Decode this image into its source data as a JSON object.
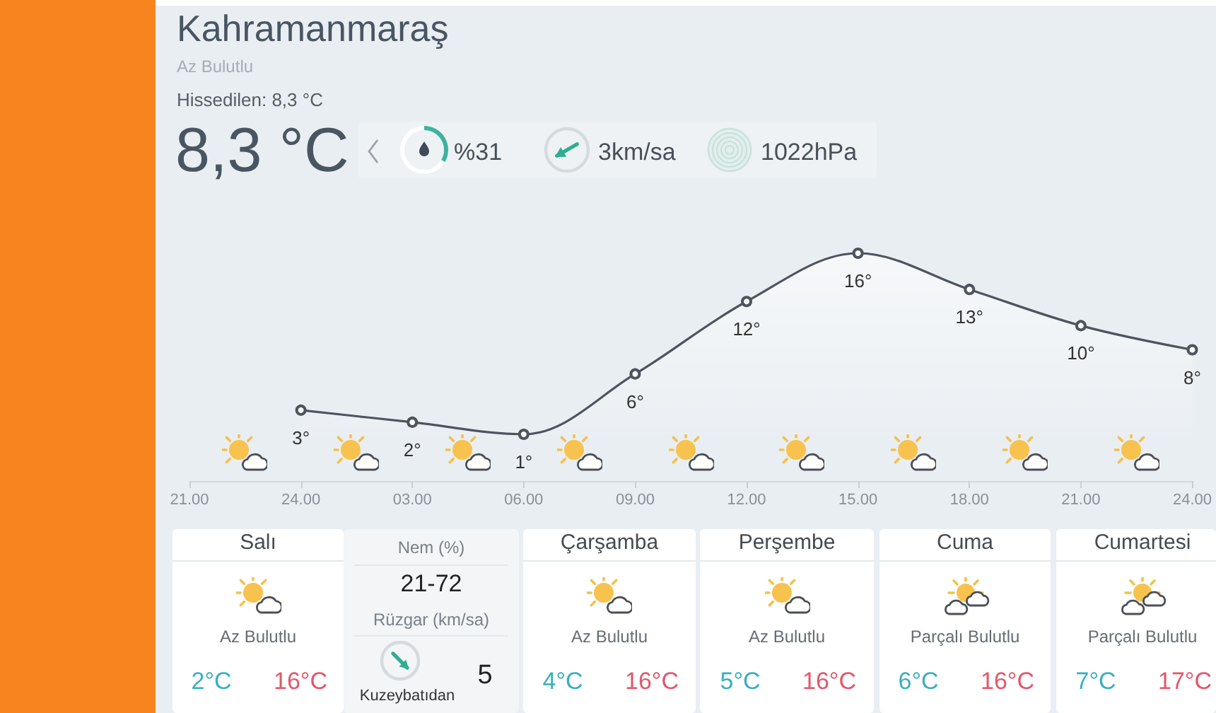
{
  "chart_data": {
    "type": "area",
    "title": "Kahramanmaraş",
    "subtitle": "Az Bulutlu",
    "categories": [
      "21.00",
      "24.00",
      "03.00",
      "06.00",
      "09.00",
      "12.00",
      "15.00",
      "18.00",
      "21.00",
      "24.00"
    ],
    "values": [
      null,
      3,
      2,
      1,
      6,
      12,
      16,
      13,
      10,
      8
    ],
    "value_labels": [
      null,
      "3°",
      "2°",
      "1°",
      "6°",
      "12°",
      "16°",
      "13°",
      "10°",
      "8°"
    ],
    "color": "#4d545e",
    "marker": "circle",
    "annotations": [
      "Hissedilen: 8,3 °C",
      "8,3 °C",
      "%31",
      "3km/sa",
      "1022hPa",
      "Salı",
      "Az Bulutlu",
      "2°C",
      "16°C",
      "Nem (%)",
      "21-72",
      "Rüzgar (km/sa)",
      "5",
      "Kuzeybatıdan",
      "Çarşamba",
      "Az Bulutlu",
      "4°C",
      "16°C",
      "Perşembe",
      "Az Bulutlu",
      "5°C",
      "16°C",
      "Cuma",
      "Parçalı Bulutlu",
      "6°C",
      "16°C",
      "Cumartesi",
      "Parçalı Bulutlu",
      "7°C",
      "17°C"
    ]
  }
}
